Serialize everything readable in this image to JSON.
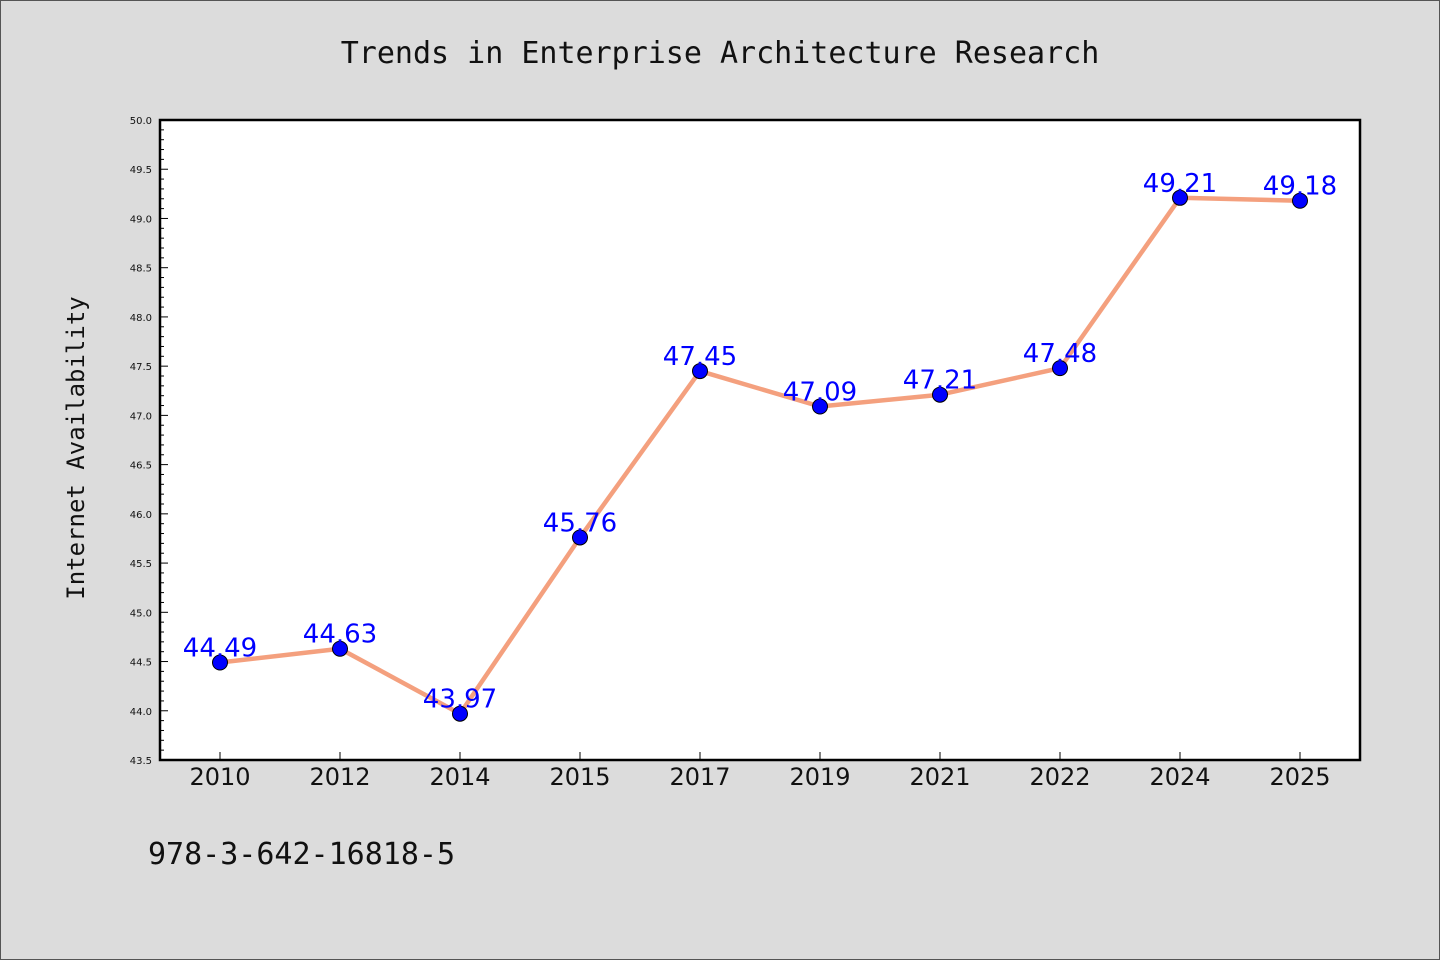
{
  "chart_data": {
    "type": "line",
    "title": "Trends in Enterprise Architecture Research",
    "xlabel": "",
    "ylabel": "Internet Availability",
    "categories": [
      "2010",
      "2012",
      "2014",
      "2015",
      "2017",
      "2019",
      "2021",
      "2022",
      "2024",
      "2025"
    ],
    "series": [
      {
        "values": [
          44.49,
          44.63,
          43.97,
          45.76,
          47.45,
          47.09,
          47.21,
          47.48,
          49.21,
          49.18
        ],
        "data_labels": [
          "44.49",
          "44.63",
          "43.97",
          "45.76",
          "47.45",
          "47.09",
          "47.21",
          "47.48",
          "49.21",
          "49.18"
        ],
        "line_color": "#f4a07e",
        "marker_color": "#0000ff"
      }
    ],
    "ylim": [
      43.5,
      50.0
    ],
    "yticks": [
      "43.5",
      "44.0",
      "44.5",
      "45.0",
      "45.5",
      "46.0",
      "46.5",
      "47.0",
      "47.5",
      "48.0",
      "48.5",
      "49.0",
      "49.5",
      "50.0"
    ],
    "grid": false,
    "legend": "none"
  },
  "footer": {
    "isbn": "978-3-642-16818-5"
  }
}
